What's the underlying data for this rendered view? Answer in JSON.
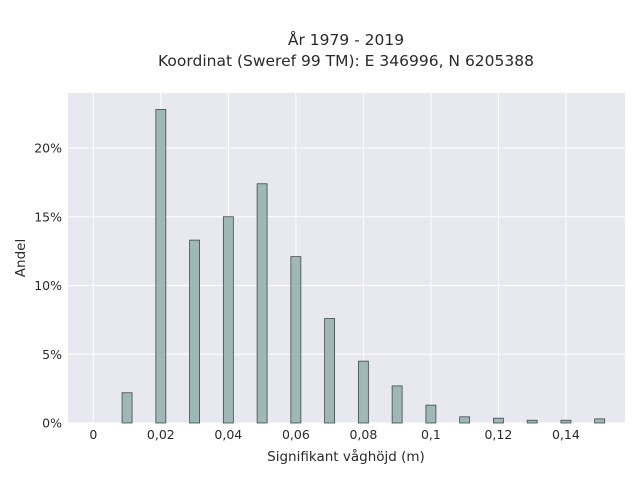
{
  "chart_data": {
    "type": "bar",
    "title_lines": [
      "År 1979 - 2019",
      "Koordinat (Sweref 99 TM): E 346996, N 6205388"
    ],
    "xlabel": "Signifikant våghöjd (m)",
    "ylabel": "Andel",
    "x_ticks": [
      {
        "value": 0,
        "label": "0"
      },
      {
        "value": 0.02,
        "label": "0,02"
      },
      {
        "value": 0.04,
        "label": "0,04"
      },
      {
        "value": 0.06,
        "label": "0,06"
      },
      {
        "value": 0.08,
        "label": "0,08"
      },
      {
        "value": 0.1,
        "label": "0,1"
      },
      {
        "value": 0.12,
        "label": "0,12"
      },
      {
        "value": 0.14,
        "label": "0,14"
      }
    ],
    "y_ticks": [
      {
        "value": 0,
        "label": "0%"
      },
      {
        "value": 5,
        "label": "5%"
      },
      {
        "value": 10,
        "label": "10%"
      },
      {
        "value": 15,
        "label": "15%"
      },
      {
        "value": 20,
        "label": "20%"
      }
    ],
    "xlim": [
      -0.0075,
      0.1575
    ],
    "ylim": [
      0,
      24
    ],
    "x": [
      0.01,
      0.02,
      0.03,
      0.04,
      0.05,
      0.06,
      0.07,
      0.08,
      0.09,
      0.1,
      0.11,
      0.12,
      0.13,
      0.14,
      0.15
    ],
    "values": [
      2.2,
      22.8,
      13.3,
      15.0,
      17.4,
      12.1,
      7.6,
      4.5,
      2.7,
      1.3,
      0.45,
      0.35,
      0.2,
      0.2,
      0.3
    ],
    "grid": true,
    "colors": {
      "bar_fill": "#9fb7b7",
      "bar_stroke": "#3f4a4a",
      "plot_bg": "#e8e8f0",
      "grid": "#ffffff"
    }
  }
}
